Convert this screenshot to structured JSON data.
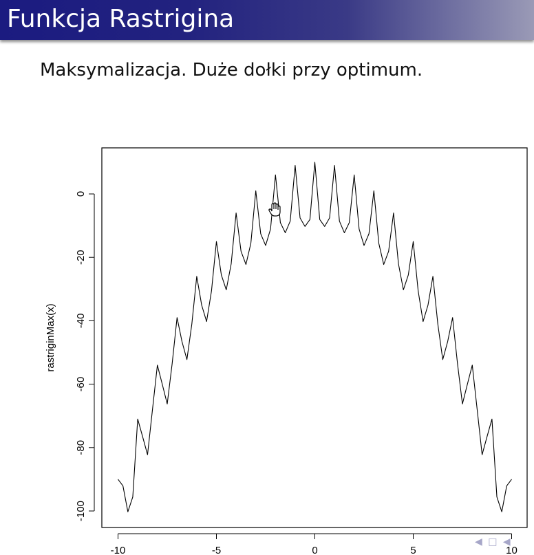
{
  "slide": {
    "title": "Funkcja Rastrigina",
    "subtitle": "Maksymalizacja. Duże dołki przy optimum."
  },
  "navigation": {
    "icons": [
      "nav-left-arrow-icon",
      "nav-frame-icon",
      "nav-right-arrow-icon"
    ],
    "color": "#a6a6c8"
  },
  "colors": {
    "title_bar_start": "#1b1b80",
    "title_bar_end": "#9a9ab6",
    "line": "#000000"
  },
  "chart_data": {
    "type": "line",
    "function": "rastriginMax",
    "title": "",
    "xlabel": "",
    "ylabel": "rastriginMax(x)",
    "xlim": [
      -10,
      10
    ],
    "ylim": [
      -100,
      10
    ],
    "xticks": [
      -10,
      -5,
      0,
      5,
      10
    ],
    "xtick_labels": [
      "-10",
      "-5",
      "0",
      "5",
      "10"
    ],
    "yticks": [
      -100,
      -80,
      -60,
      -40,
      -20,
      0
    ],
    "ytick_labels": [
      "-100",
      "-80",
      "-60",
      "-40",
      "-20",
      "0"
    ],
    "grid": false,
    "series": [
      {
        "x": [
          -10,
          -9.75,
          -9.5,
          -9.25,
          -9,
          -8.75,
          -8.5,
          -8.25,
          -8,
          -7.75,
          -7.5,
          -7.25,
          -7,
          -6.75,
          -6.5,
          -6.25,
          -6,
          -5.75,
          -5.5,
          -5.25,
          -5,
          -4.75,
          -4.5,
          -4.25,
          -4,
          -3.75,
          -3.5,
          -3.25,
          -3,
          -2.75,
          -2.5,
          -2.25,
          -2,
          -1.75,
          -1.5,
          -1.25,
          -1,
          -0.75,
          -0.5,
          -0.25,
          0,
          0.25,
          0.5,
          0.75,
          1,
          1.25,
          1.5,
          1.75,
          2,
          2.25,
          2.5,
          2.75,
          3,
          3.25,
          3.5,
          3.75,
          4,
          4.25,
          4.5,
          4.75,
          5,
          5.25,
          5.5,
          5.75,
          6,
          6.25,
          6.5,
          6.75,
          7,
          7.25,
          7.5,
          7.75,
          8,
          8.25,
          8.5,
          8.75,
          9,
          9.25,
          9.5,
          9.75,
          10
        ],
        "y": [
          -90,
          -92.06,
          -100.25,
          -95.56,
          -71,
          -76.56,
          -82.25,
          -68.06,
          -54,
          -60.06,
          -66.25,
          -53.56,
          -39,
          -46.56,
          -52.25,
          -41.06,
          -26,
          -35.06,
          -40.25,
          -30.56,
          -15,
          -25.56,
          -30.25,
          -22.06,
          -6,
          -18.06,
          -22.25,
          -15.56,
          1,
          -12.56,
          -16.25,
          -11.06,
          6,
          -9.06,
          -12.25,
          -8.56,
          9,
          -7.56,
          -10.25,
          -8.06,
          10,
          -8.06,
          -10.25,
          -7.56,
          9,
          -8.56,
          -12.25,
          -9.06,
          6,
          -11.06,
          -16.25,
          -12.56,
          1,
          -15.56,
          -22.25,
          -18.06,
          -6,
          -22.06,
          -30.25,
          -25.56,
          -15,
          -30.56,
          -40.25,
          -35.06,
          -26,
          -41.06,
          -52.25,
          -46.56,
          -39,
          -53.56,
          -66.25,
          -60.06,
          -54,
          -68.06,
          -82.25,
          -76.56,
          -71,
          -95.56,
          -100.25,
          -92.06,
          -90
        ]
      }
    ]
  }
}
